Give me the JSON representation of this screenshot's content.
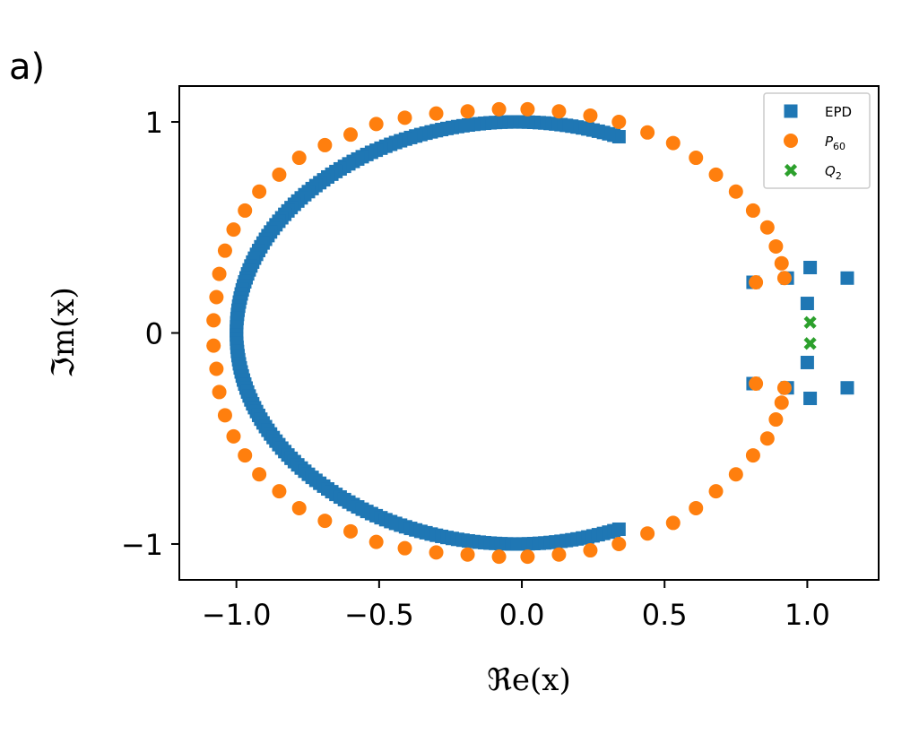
{
  "panel_label": "a)",
  "chart_data": {
    "type": "scatter",
    "xlabel": "ℜe(x)",
    "ylabel": "ℑm(x)",
    "xlim": [
      -1.2,
      1.25
    ],
    "ylim": [
      -1.17,
      1.17
    ],
    "xticks": [
      -1.0,
      -0.5,
      0.0,
      0.5,
      1.0
    ],
    "xtick_labels": [
      "−1.0",
      "−0.5",
      "0.0",
      "0.5",
      "1.0"
    ],
    "yticks": [
      -1,
      0,
      1
    ],
    "ytick_labels": [
      "−1",
      "0",
      "1"
    ],
    "grid": false,
    "legend_position": "top-right",
    "series": [
      {
        "name": "EPD",
        "marker": "square",
        "color": "#1f77b4",
        "curve": {
          "shape": "ellipse",
          "center_x": -0.02,
          "semi_axis_x": 0.98,
          "semi_axis_y": 1.0,
          "y_range": [
            -0.93,
            0.93
          ],
          "n_points": 200
        },
        "x": [
          0.81,
          0.81,
          0.93,
          0.93,
          1.0,
          1.0,
          1.01,
          1.01,
          1.14,
          1.14
        ],
        "y": [
          0.24,
          -0.24,
          0.26,
          -0.26,
          0.14,
          -0.14,
          0.31,
          -0.31,
          0.26,
          -0.26
        ]
      },
      {
        "name": "P60",
        "marker": "circle",
        "color": "#ff7f0e",
        "x": [
          -1.08,
          -1.07,
          -1.06,
          -1.04,
          -1.01,
          -0.97,
          -0.92,
          -0.85,
          -0.78,
          -0.69,
          -0.6,
          -0.51,
          -0.41,
          -0.3,
          -0.19,
          -0.08,
          0.02,
          0.13,
          0.24,
          0.34,
          0.44,
          0.53,
          0.61,
          0.68,
          0.75,
          0.81,
          0.86,
          0.89,
          0.91,
          0.92,
          0.92,
          0.91,
          0.89,
          0.86,
          0.81,
          0.75,
          0.68,
          0.61,
          0.53,
          0.44,
          0.34,
          0.24,
          0.13,
          0.02,
          -0.08,
          -0.19,
          -0.3,
          -0.41,
          -0.51,
          -0.6,
          -0.69,
          -0.78,
          -0.85,
          -0.92,
          -0.97,
          -1.01,
          -1.04,
          -1.06,
          -1.07,
          -1.08,
          0.82,
          0.82
        ],
        "y": [
          0.06,
          0.17,
          0.28,
          0.39,
          0.49,
          0.58,
          0.67,
          0.75,
          0.83,
          0.89,
          0.94,
          0.99,
          1.02,
          1.04,
          1.05,
          1.06,
          1.06,
          1.05,
          1.03,
          1.0,
          0.95,
          0.9,
          0.83,
          0.75,
          0.67,
          0.58,
          0.5,
          0.41,
          0.33,
          0.26,
          -0.26,
          -0.33,
          -0.41,
          -0.5,
          -0.58,
          -0.67,
          -0.75,
          -0.83,
          -0.9,
          -0.95,
          -1.0,
          -1.03,
          -1.05,
          -1.06,
          -1.06,
          -1.05,
          -1.04,
          -1.02,
          -0.99,
          -0.94,
          -0.89,
          -0.83,
          -0.75,
          -0.67,
          -0.58,
          -0.49,
          -0.39,
          -0.28,
          -0.17,
          -0.06,
          0.24,
          -0.24
        ]
      },
      {
        "name": "Q2",
        "marker": "x",
        "color": "#2ca02c",
        "x": [
          1.01,
          1.01
        ],
        "y": [
          0.05,
          -0.05
        ]
      }
    ],
    "legend": [
      {
        "label": "EPD",
        "sub": ""
      },
      {
        "label": "P",
        "sub": "60"
      },
      {
        "label": "Q",
        "sub": "2"
      }
    ]
  }
}
